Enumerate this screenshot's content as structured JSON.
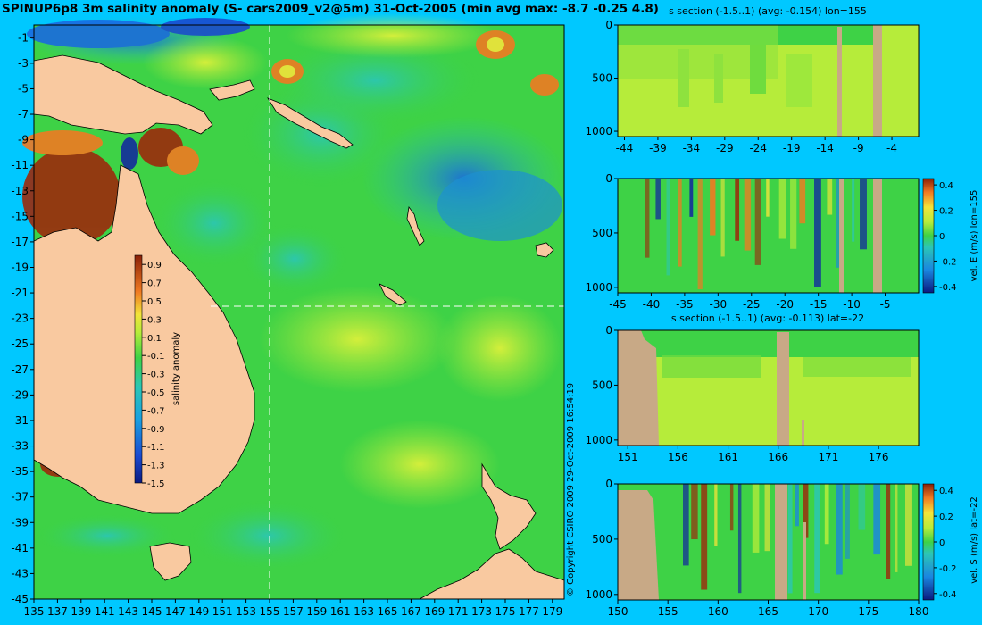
{
  "title": "SPINUP6p8 3m salinity anomaly (S- cars2009_v2@5m) 31-Oct-2005 (min avg max: -8.7 -0.25 4.8)",
  "copyright": "© Copyright CSIRO 2009   29-Oct-2009 16:54:19",
  "colors": {
    "background": "#00c8ff",
    "land": "#f9c9a0",
    "section_land": "#c8a986",
    "green": "#3ed246",
    "yellow_green": "#b6ec3a",
    "yellow": "#e4f23a",
    "cyan": "#2bc6b6",
    "blue": "#1a86e0",
    "dark_blue": "#132c9c",
    "orange": "#f07a22",
    "dark_red": "#9c2a0c",
    "guide_line": "#ffffff"
  },
  "chart_data": [
    {
      "type": "heatmap",
      "name": "map",
      "title": "SPINUP6p8 3m salinity anomaly (S- cars2009_v2@5m) 31-Oct-2005 (min avg max: -8.7 -0.25 4.8)",
      "xlabel": "",
      "ylabel": "",
      "xlim": [
        135,
        180
      ],
      "ylim": [
        -45,
        0
      ],
      "x_ticks": [
        135,
        137,
        139,
        141,
        143,
        145,
        147,
        149,
        151,
        153,
        155,
        157,
        159,
        161,
        163,
        165,
        167,
        169,
        171,
        173,
        175,
        177,
        179
      ],
      "y_ticks": [
        -1,
        -3,
        -5,
        -7,
        -9,
        -11,
        -13,
        -15,
        -17,
        -19,
        -21,
        -23,
        -25,
        -27,
        -29,
        -31,
        -33,
        -35,
        -37,
        -39,
        -41,
        -43,
        -45
      ],
      "section_lines": {
        "lon": 155,
        "lat": -22
      },
      "colorbar": {
        "label": "salinity anomaly",
        "ticks": [
          0.9,
          0.7,
          0.5,
          0.3,
          0.1,
          -0.1,
          -0.3,
          -0.5,
          -0.7,
          -0.9,
          -1.1,
          -1.3,
          -1.5
        ],
        "range": [
          -1.5,
          1.0
        ]
      }
    },
    {
      "type": "heatmap",
      "name": "section-1",
      "title": "s section (-1.5..1) (avg: -0.154) lon=155",
      "xlim": [
        -45,
        0
      ],
      "ylim": [
        1050,
        0
      ],
      "x_ticks": [
        -44,
        -39,
        -34,
        -29,
        -24,
        -19,
        -14,
        -9,
        -4
      ],
      "y_ticks": [
        0,
        500,
        1000
      ]
    },
    {
      "type": "heatmap",
      "name": "section-2",
      "title": "",
      "xlim": [
        -45,
        0
      ],
      "ylim": [
        1050,
        0
      ],
      "x_ticks": [
        -45,
        -40,
        -35,
        -30,
        -25,
        -20,
        -15,
        -10,
        -5
      ],
      "y_ticks": [
        0,
        500,
        1000
      ],
      "colorbar": {
        "label": "vel. E (m/s) lon=155",
        "ticks": [
          0.4,
          0.2,
          0,
          -0.2,
          -0.4
        ]
      }
    },
    {
      "type": "heatmap",
      "name": "section-3",
      "title": "s section (-1.5..1) (avg: -0.113) lat=-22",
      "xlim": [
        150,
        180
      ],
      "ylim": [
        1050,
        0
      ],
      "x_ticks": [
        151,
        156,
        161,
        166,
        171,
        176
      ],
      "y_ticks": [
        0,
        500,
        1000
      ]
    },
    {
      "type": "heatmap",
      "name": "section-4",
      "title": "",
      "xlim": [
        150,
        180
      ],
      "ylim": [
        1050,
        0
      ],
      "x_ticks": [
        150,
        155,
        160,
        165,
        170,
        175,
        180
      ],
      "y_ticks": [
        0,
        500,
        1000
      ],
      "colorbar": {
        "label": "vel. S (m/s) lat=-22",
        "ticks": [
          0.4,
          0.2,
          0,
          -0.2,
          -0.4
        ]
      }
    }
  ]
}
